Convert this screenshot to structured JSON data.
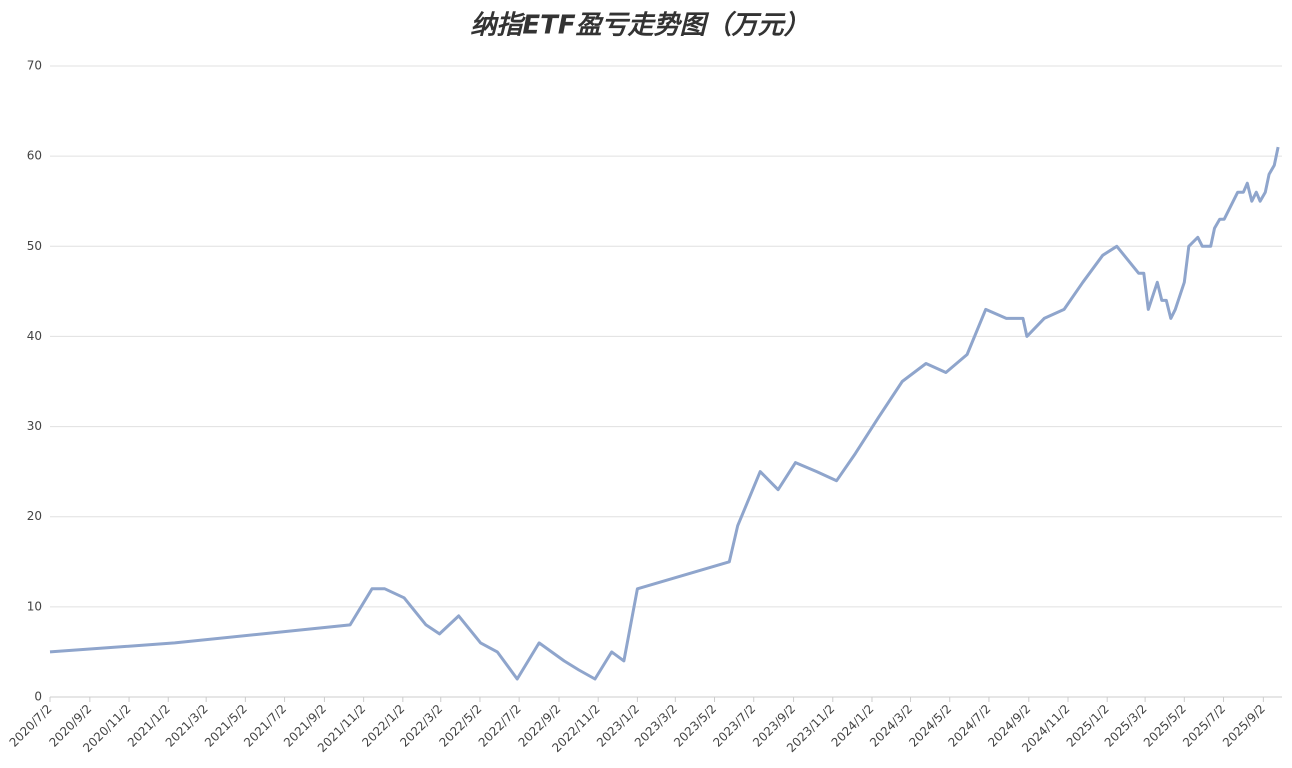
{
  "chart_data": {
    "type": "line",
    "title": "纳指ETF盈亏走势图（万元）",
    "x": [
      "2020/7/2",
      "2021/1/12",
      "2021/10/12",
      "2021/11/15",
      "2021/12/5",
      "2022/1/4",
      "2022/2/7",
      "2022/2/28",
      "2022/3/30",
      "2022/5/3",
      "2022/5/29",
      "2022/6/29",
      "2022/8/2",
      "2022/9/10",
      "2022/10/3",
      "2022/10/28",
      "2022/11/23",
      "2022/12/12",
      "2023/1/2",
      "2023/5/25",
      "2023/6/7",
      "2023/7/12",
      "2023/8/9",
      "2023/9/5",
      "2023/10/8",
      "2023/11/8",
      "2023/12/7",
      "2024/1/12",
      "2024/2/18",
      "2024/3/26",
      "2024/4/26",
      "2024/5/29",
      "2024/6/27",
      "2024/7/29",
      "2024/8/24",
      "2024/8/30",
      "2024/9/26",
      "2024/10/27",
      "2024/11/25",
      "2024/12/26",
      "2025/1/17",
      "2025/2/20",
      "2025/2/28",
      "2025/3/7",
      "2025/3/21",
      "2025/3/28",
      "2025/4/4",
      "2025/4/11",
      "2025/4/18",
      "2025/5/2",
      "2025/5/9",
      "2025/5/23",
      "2025/5/30",
      "2025/6/12",
      "2025/6/18",
      "2025/6/26",
      "2025/7/3",
      "2025/7/24",
      "2025/8/2",
      "2025/8/8",
      "2025/8/15",
      "2025/8/22",
      "2025/8/28",
      "2025/9/5",
      "2025/9/11",
      "2025/9/19",
      "2025/9/25"
    ],
    "series": [
      {
        "color": "#8fa5cc",
        "values": [
          5,
          6,
          8,
          12,
          12,
          11,
          8,
          7,
          9,
          6,
          5,
          2,
          6,
          4,
          3,
          2,
          5,
          4,
          12,
          15,
          19,
          25,
          23,
          26,
          25,
          24,
          27,
          31,
          35,
          37,
          36,
          38,
          43,
          42,
          42,
          40,
          42,
          43,
          46,
          49,
          50,
          47,
          47,
          43,
          46,
          44,
          44,
          42,
          43,
          46,
          50,
          51,
          50,
          50,
          52,
          53,
          53,
          56,
          56,
          57,
          55,
          56,
          55,
          56,
          58,
          59,
          61
        ]
      }
    ],
    "xlim": [
      "2020/7/2",
      "2025/10/1"
    ],
    "xticks": [
      "2020/7/2",
      "2020/9/2",
      "2020/11/2",
      "2021/1/2",
      "2021/3/2",
      "2021/5/2",
      "2021/7/2",
      "2021/9/2",
      "2021/11/2",
      "2022/1/2",
      "2022/3/2",
      "2022/5/2",
      "2022/7/2",
      "2022/9/2",
      "2022/11/2",
      "2023/1/2",
      "2023/3/2",
      "2023/5/2",
      "2023/7/2",
      "2023/9/2",
      "2023/11/2",
      "2024/1/2",
      "2024/3/2",
      "2024/5/2",
      "2024/7/2",
      "2024/9/2",
      "2024/11/2",
      "2025/1/2",
      "2025/3/2",
      "2025/5/2",
      "2025/7/2",
      "2025/9/2"
    ],
    "ylim": [
      0,
      70
    ],
    "yticks": [
      0,
      10,
      20,
      30,
      40,
      50,
      60,
      70
    ],
    "grid": true
  }
}
